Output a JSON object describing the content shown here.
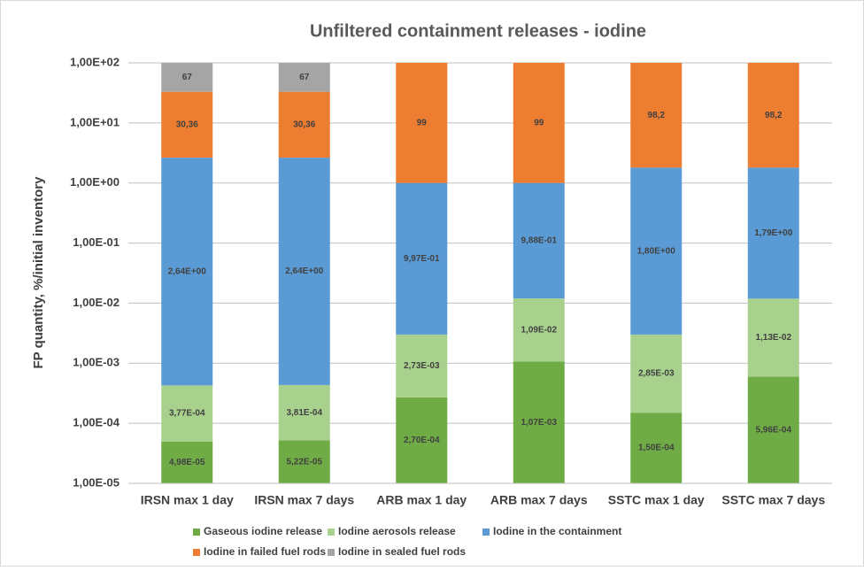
{
  "chart_data": {
    "type": "bar",
    "stacked": true,
    "title": "Unfiltered containment releases - iodine",
    "ylabel": "FP quantity, %/initial inventory",
    "categories": [
      "IRSN max 1 day",
      "IRSN max 7 days",
      "ARB max 1 day",
      "ARB max 7 days",
      "SSTC max 1 day",
      "SSTC max 7 days"
    ],
    "series": [
      {
        "name": "Gaseous iodine release",
        "color": "#6fac46",
        "values": [
          4.98e-05,
          5.22e-05,
          0.00027,
          0.00107,
          0.00015,
          0.000596
        ],
        "value_labels": [
          "4,98E-05",
          "5,22E-05",
          "2,70E-04",
          "1,07E-03",
          "1,50E-04",
          "5,96E-04"
        ]
      },
      {
        "name": "Iodine aerosols release",
        "color": "#a9d18e",
        "values": [
          0.000377,
          0.000381,
          0.00273,
          0.0109,
          0.00285,
          0.0113
        ],
        "value_labels": [
          "3,77E-04",
          "3,81E-04",
          "2,73E-03",
          "1,09E-02",
          "2,85E-03",
          "1,13E-02"
        ]
      },
      {
        "name": "Iodine in the containment",
        "color": "#5b9bd5",
        "values": [
          2.64,
          2.64,
          0.997,
          0.988,
          1.8,
          1.79
        ],
        "value_labels": [
          "2,64E+00",
          "2,64E+00",
          "9,97E-01",
          "9,88E-01",
          "1,80E+00",
          "1,79E+00"
        ]
      },
      {
        "name": "Iodine in failed fuel rods",
        "color": "#ed7d31",
        "values": [
          30.36,
          30.36,
          99,
          99,
          98.2,
          98.2
        ],
        "value_labels": [
          "30,36",
          "30,36",
          "99",
          "99",
          "98,2",
          "98,2"
        ]
      },
      {
        "name": "Iodine in sealed fuel rods",
        "color": "#a5a5a5",
        "values": [
          67,
          67,
          null,
          null,
          null,
          null
        ],
        "value_labels": [
          "67",
          "67",
          null,
          null,
          null,
          null
        ]
      }
    ],
    "log": true,
    "ylim": [
      1e-05,
      100
    ],
    "yticks": [
      {
        "value": 1e-05,
        "label": "1,00E-05"
      },
      {
        "value": 0.0001,
        "label": "1,00E-04"
      },
      {
        "value": 0.001,
        "label": "1,00E-03"
      },
      {
        "value": 0.01,
        "label": "1,00E-02"
      },
      {
        "value": 0.1,
        "label": "1,00E-01"
      },
      {
        "value": 1,
        "label": "1,00E+00"
      },
      {
        "value": 10,
        "label": "1,00E+01"
      },
      {
        "value": 100,
        "label": "1,00E+02"
      }
    ],
    "grid": true,
    "legend": "bottom"
  }
}
